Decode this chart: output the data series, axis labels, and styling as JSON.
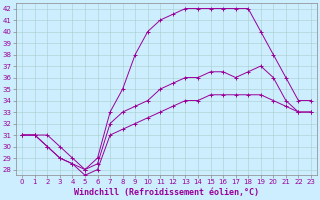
{
  "title": "",
  "xlabel": "Windchill (Refroidissement éolien,°C)",
  "bg_color": "#cceeff",
  "line_color": "#990099",
  "grid_color": "#aacccc",
  "curve1_x": [
    0,
    1,
    2,
    3,
    4,
    5,
    6,
    7,
    8,
    9,
    10,
    11,
    12,
    13,
    14,
    15,
    16,
    17,
    18,
    19,
    20,
    21,
    22,
    23
  ],
  "curve1_y": [
    31,
    31,
    31,
    30,
    29,
    28,
    29,
    33,
    35,
    38,
    40,
    41,
    41.5,
    42,
    42,
    42,
    42,
    42,
    42,
    40,
    38,
    36,
    34,
    34
  ],
  "curve2_x": [
    0,
    1,
    2,
    3,
    4,
    5,
    6,
    7,
    8,
    9,
    10,
    11,
    12,
    13,
    14,
    15,
    16,
    17,
    18,
    19,
    20,
    21,
    22,
    23
  ],
  "curve2_y": [
    31,
    31,
    30,
    29,
    28.5,
    28,
    28.5,
    32,
    33,
    33.5,
    34,
    35,
    35.5,
    36,
    36,
    36.5,
    36.5,
    36,
    36.5,
    37,
    36,
    34,
    33,
    33
  ],
  "curve3_x": [
    0,
    1,
    2,
    3,
    4,
    5,
    6,
    7,
    8,
    9,
    10,
    11,
    12,
    13,
    14,
    15,
    16,
    17,
    18,
    19,
    20,
    21,
    22,
    23
  ],
  "curve3_y": [
    31,
    31,
    30,
    29,
    28.5,
    27.5,
    28,
    31,
    31.5,
    32,
    32.5,
    33,
    33.5,
    34,
    34,
    34.5,
    34.5,
    34.5,
    34.5,
    34.5,
    34,
    33.5,
    33,
    33
  ],
  "ylim": [
    27.5,
    42.5
  ],
  "xlim": [
    -0.5,
    23.5
  ],
  "yticks": [
    28,
    29,
    30,
    31,
    32,
    33,
    34,
    35,
    36,
    37,
    38,
    39,
    40,
    41,
    42
  ],
  "xticks": [
    0,
    1,
    2,
    3,
    4,
    5,
    6,
    7,
    8,
    9,
    10,
    11,
    12,
    13,
    14,
    15,
    16,
    17,
    18,
    19,
    20,
    21,
    22,
    23
  ],
  "tick_fontsize": 5,
  "xlabel_fontsize": 6,
  "linewidth": 0.7,
  "markersize": 3.5
}
